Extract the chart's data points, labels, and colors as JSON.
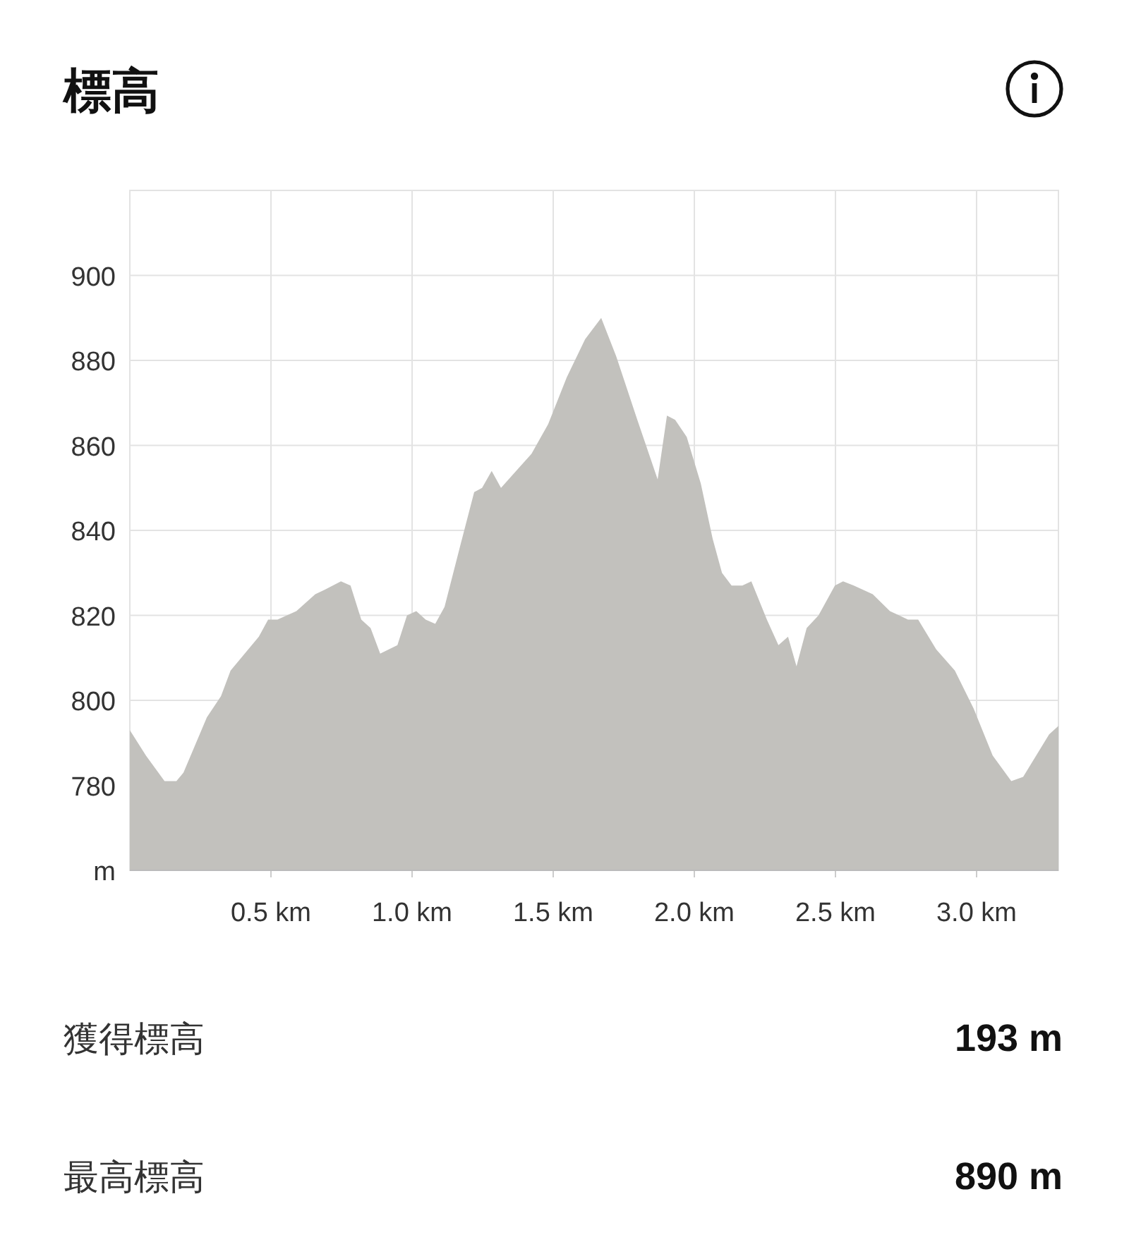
{
  "chart_data": {
    "type": "area",
    "title": "標高",
    "x": [
      0,
      0.057,
      0.123,
      0.165,
      0.19,
      0.273,
      0.323,
      0.357,
      0.407,
      0.457,
      0.49,
      0.523,
      0.59,
      0.657,
      0.69,
      0.748,
      0.782,
      0.82,
      0.853,
      0.887,
      0.948,
      0.982,
      1.015,
      1.048,
      1.082,
      1.115,
      1.173,
      1.22,
      1.248,
      1.282,
      1.315,
      1.382,
      1.423,
      1.482,
      1.548,
      1.613,
      1.67,
      1.723,
      1.798,
      1.87,
      1.903,
      1.932,
      1.973,
      2.023,
      2.065,
      2.098,
      2.132,
      2.17,
      2.202,
      2.257,
      2.298,
      2.332,
      2.362,
      2.398,
      2.44,
      2.498,
      2.527,
      2.565,
      2.632,
      2.693,
      2.757,
      2.793,
      2.857,
      2.923,
      2.99,
      3.057,
      3.123,
      3.165,
      3.257,
      3.29
    ],
    "series": [
      {
        "color": "#c2c1bd",
        "values": [
          793,
          787,
          781,
          781,
          783,
          796,
          801,
          807,
          811,
          815,
          819,
          819,
          821,
          825,
          826,
          828,
          827,
          819,
          817,
          811,
          813,
          820,
          821,
          819,
          818,
          822,
          837,
          849,
          850,
          854,
          850,
          855,
          858,
          865,
          876,
          885,
          890,
          881,
          866,
          852,
          867,
          866,
          862,
          851,
          838,
          830,
          827,
          827,
          828,
          819,
          813,
          815,
          808,
          817,
          820,
          827,
          828,
          827,
          825,
          821,
          819,
          819,
          812,
          807,
          798,
          787,
          781,
          782,
          792,
          794
        ]
      }
    ],
    "xlim": [
      0,
      3.29
    ],
    "ylim": [
      760,
      920
    ],
    "xticks": [
      {
        "value": 0.5,
        "label": "0.5 km"
      },
      {
        "value": 1.0,
        "label": "1.0 km"
      },
      {
        "value": 1.5,
        "label": "1.5 km"
      },
      {
        "value": 2.0,
        "label": "2.0 km"
      },
      {
        "value": 2.5,
        "label": "2.5 km"
      },
      {
        "value": 3.0,
        "label": "3.0 km"
      }
    ],
    "yticks": [
      {
        "value": 760,
        "label": "m"
      },
      780,
      800,
      820,
      840,
      860,
      880,
      900
    ],
    "grid": true,
    "annotations": [
      "獲得標高",
      "193 m",
      "最高標高",
      "890 m"
    ]
  }
}
